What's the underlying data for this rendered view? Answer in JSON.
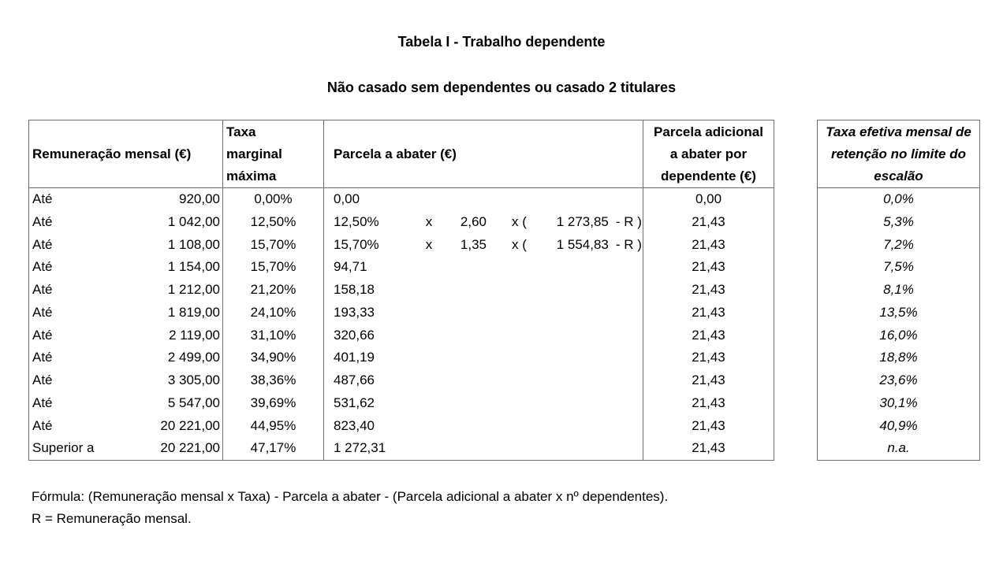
{
  "page": {
    "title": "Tabela I - Trabalho dependente",
    "subtitle": "Não casado sem dependentes ou casado 2 titulares",
    "footer_line1": "Fórmula: (Remuneração mensal x Taxa) - Parcela a abater - (Parcela adicional a abater x nº dependentes).",
    "footer_line2": "R = Remuneração mensal."
  },
  "main_table": {
    "headers": {
      "col1": "Remuneração mensal (€)",
      "col2": "Taxa marginal máxima",
      "col3": "Parcela a abater (€)",
      "col4": "Parcela adicional a abater por dependente (€)"
    },
    "rows": [
      {
        "p": "Até",
        "v": "920,00",
        "r": "0,00%",
        "a1": "0,00",
        "d": "0,00"
      },
      {
        "p": "Até",
        "v": "1 042,00",
        "r": "12,50%",
        "a1": "12,50%",
        "a2": "x",
        "a3": "2,60",
        "a4": "x (",
        "a5": "1 273,85",
        "a6": "- R )",
        "d": "21,43"
      },
      {
        "p": "Até",
        "v": "1 108,00",
        "r": "15,70%",
        "a1": "15,70%",
        "a2": "x",
        "a3": "1,35",
        "a4": "x (",
        "a5": "1 554,83",
        "a6": "- R )",
        "d": "21,43"
      },
      {
        "p": "Até",
        "v": "1 154,00",
        "r": "15,70%",
        "a1": "94,71",
        "d": "21,43"
      },
      {
        "p": "Até",
        "v": "1 212,00",
        "r": "21,20%",
        "a1": "158,18",
        "d": "21,43"
      },
      {
        "p": "Até",
        "v": "1 819,00",
        "r": "24,10%",
        "a1": "193,33",
        "d": "21,43"
      },
      {
        "p": "Até",
        "v": "2 119,00",
        "r": "31,10%",
        "a1": "320,66",
        "d": "21,43"
      },
      {
        "p": "Até",
        "v": "2 499,00",
        "r": "34,90%",
        "a1": "401,19",
        "d": "21,43"
      },
      {
        "p": "Até",
        "v": "3 305,00",
        "r": "38,36%",
        "a1": "487,66",
        "d": "21,43"
      },
      {
        "p": "Até",
        "v": "5 547,00",
        "r": "39,69%",
        "a1": "531,62",
        "d": "21,43"
      },
      {
        "p": "Até",
        "v": "20 221,00",
        "r": "44,95%",
        "a1": "823,40",
        "d": "21,43"
      },
      {
        "p": "Superior a",
        "v": "20 221,00",
        "r": "47,17%",
        "a1": "1 272,31",
        "d": "21,43"
      }
    ]
  },
  "side_table": {
    "header": "Taxa efetiva mensal de retenção no limite do escalão",
    "values": [
      "0,0%",
      "5,3%",
      "7,2%",
      "7,5%",
      "8,1%",
      "13,5%",
      "16,0%",
      "18,8%",
      "23,6%",
      "30,1%",
      "40,9%",
      "n.a."
    ]
  },
  "colors": {
    "border": "#6e6e6e",
    "text": "#000000",
    "background": "#ffffff"
  }
}
